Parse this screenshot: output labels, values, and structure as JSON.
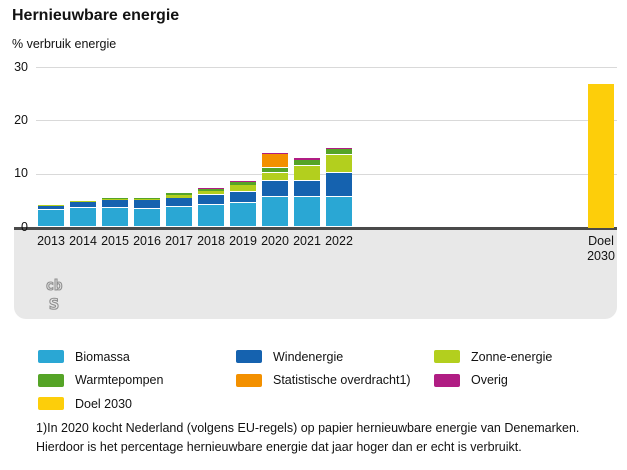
{
  "title": "Hernieuwbare energie",
  "unit_label": "% verbruik energie",
  "logo": {
    "top": "cb",
    "bottom": "s"
  },
  "colors": {
    "panel": "#e8e8e8",
    "grid": "#d9d9d9",
    "axis": "#4a4a4a",
    "text": "#121212",
    "logo_outline": "#8f8f8f"
  },
  "footnote": {
    "line1": "1)In 2020 kocht Nederland (volgens EU-regels) op papier hernieuwbare energie van Denemarken.",
    "line2": "Hierdoor is het percentage hernieuwbare energie dat jaar hoger dan er echt is verbruikt."
  },
  "chart_data": {
    "type": "bar",
    "stacked": true,
    "title": "Hernieuwbare energie",
    "ylabel": "% verbruik energie",
    "ylim": [
      0,
      30
    ],
    "yticks": [
      0,
      10,
      20,
      30
    ],
    "grid": true,
    "legend_position": "bottom",
    "categories": [
      "2013",
      "2014",
      "2015",
      "2016",
      "2017",
      "2018",
      "2019",
      "2020",
      "2021",
      "2022"
    ],
    "series": [
      {
        "name": "Biomassa",
        "color": "#2aa7d4",
        "values": [
          3.2,
          3.6,
          3.6,
          3.5,
          3.8,
          4.2,
          4.6,
          5.8,
          5.8,
          5.8
        ]
      },
      {
        "name": "Windenergie",
        "color": "#1562af",
        "values": [
          1.0,
          1.2,
          1.5,
          1.6,
          1.8,
          1.9,
          2.1,
          2.9,
          3.0,
          4.4
        ]
      },
      {
        "name": "Zonne-energie",
        "color": "#b3cf1e",
        "values": [
          0.1,
          0.1,
          0.2,
          0.3,
          0.5,
          0.8,
          1.3,
          1.5,
          2.7,
          3.4
        ]
      },
      {
        "name": "Warmtepompen",
        "color": "#55a427",
        "values": [
          0.0,
          0.0,
          0.2,
          0.2,
          0.3,
          0.4,
          0.6,
          0.9,
          1.2,
          1.1
        ]
      },
      {
        "name": "Statistische overdracht1)",
        "color": "#f39000",
        "values": [
          0.0,
          0.0,
          0.0,
          0.0,
          0.0,
          0.0,
          0.0,
          2.6,
          0.0,
          0.0
        ]
      },
      {
        "name": "Overig",
        "color": "#b01d83",
        "values": [
          0.0,
          0.0,
          0.0,
          0.0,
          0.0,
          0.2,
          0.2,
          0.3,
          0.3,
          0.3
        ]
      }
    ],
    "target_bar": {
      "name": "Doel 2030",
      "value": 27,
      "color": "#fdce0a",
      "tick_label_line1": "Doel",
      "tick_label_line2": "2030"
    },
    "legend": [
      "Biomassa",
      "Windenergie",
      "Zonne-energie",
      "Warmtepompen",
      "Statistische overdracht1)",
      "Overig",
      "Doel 2030"
    ]
  }
}
